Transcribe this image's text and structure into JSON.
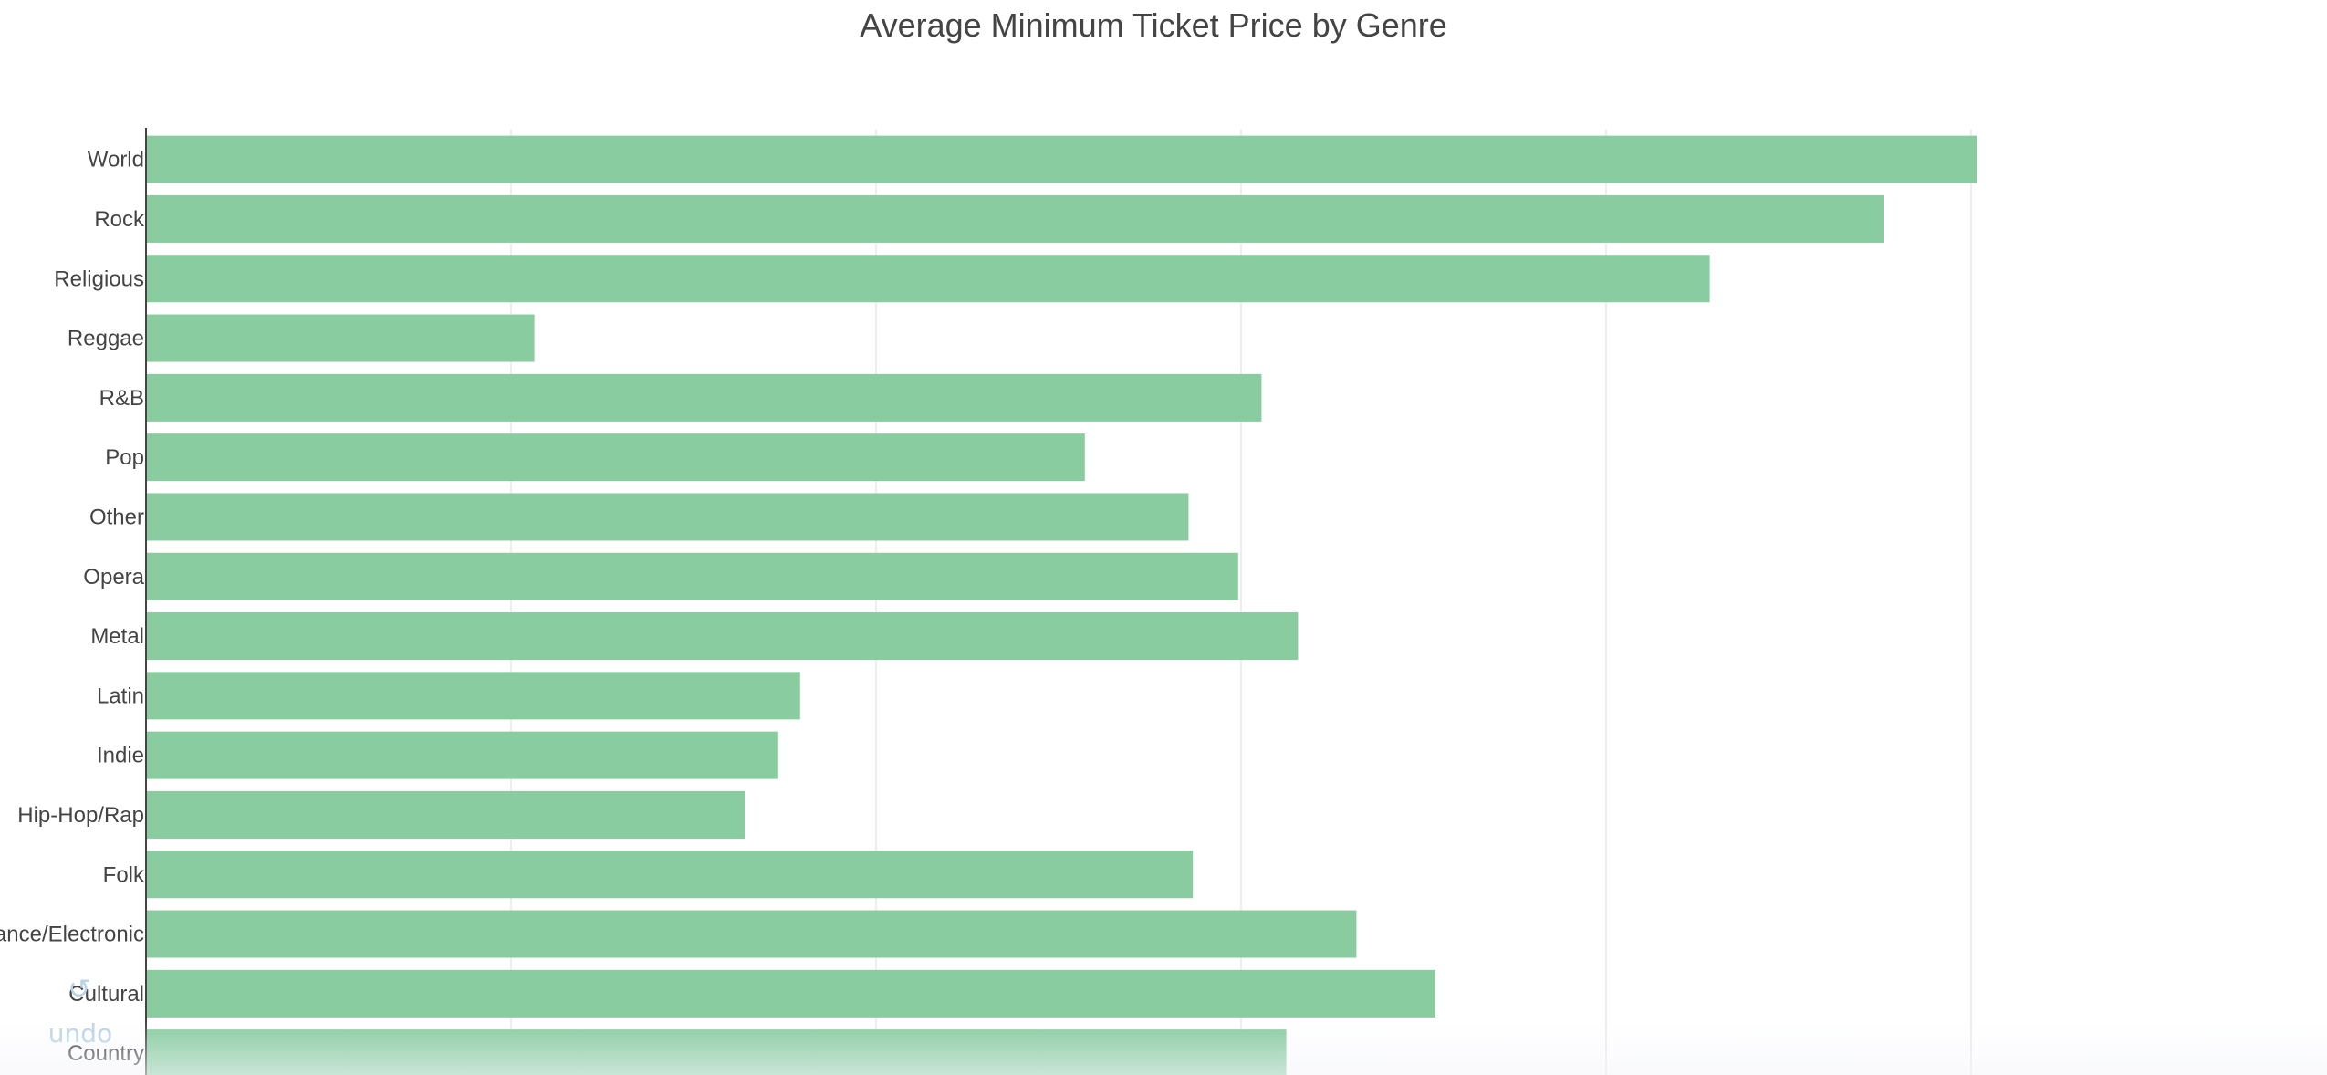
{
  "chart_data": {
    "type": "bar",
    "orientation": "horizontal",
    "title": "Average Minimum Ticket Price by Genre",
    "xlabel": "",
    "ylabel": "",
    "categories": [
      "World",
      "Rock",
      "Religious",
      "Reggae",
      "R&B",
      "Pop",
      "Other",
      "Opera",
      "Metal",
      "Latin",
      "Indie",
      "Hip-Hop/Rap",
      "Folk",
      "Dance/Electronic",
      "Cultural",
      "Country"
    ],
    "values": [
      125.4,
      119.0,
      107.1,
      26.6,
      76.4,
      64.3,
      71.4,
      74.8,
      78.9,
      44.8,
      43.3,
      41.0,
      71.7,
      82.9,
      88.3,
      78.1
    ],
    "xlim": [
      0,
      135
    ],
    "x_gridlines": [
      25,
      50,
      75,
      100,
      125
    ],
    "color": "#88cca0",
    "grid": true,
    "legend": "none"
  },
  "controls": {
    "undo_label": "undo",
    "undo_icon": "undo-icon"
  }
}
